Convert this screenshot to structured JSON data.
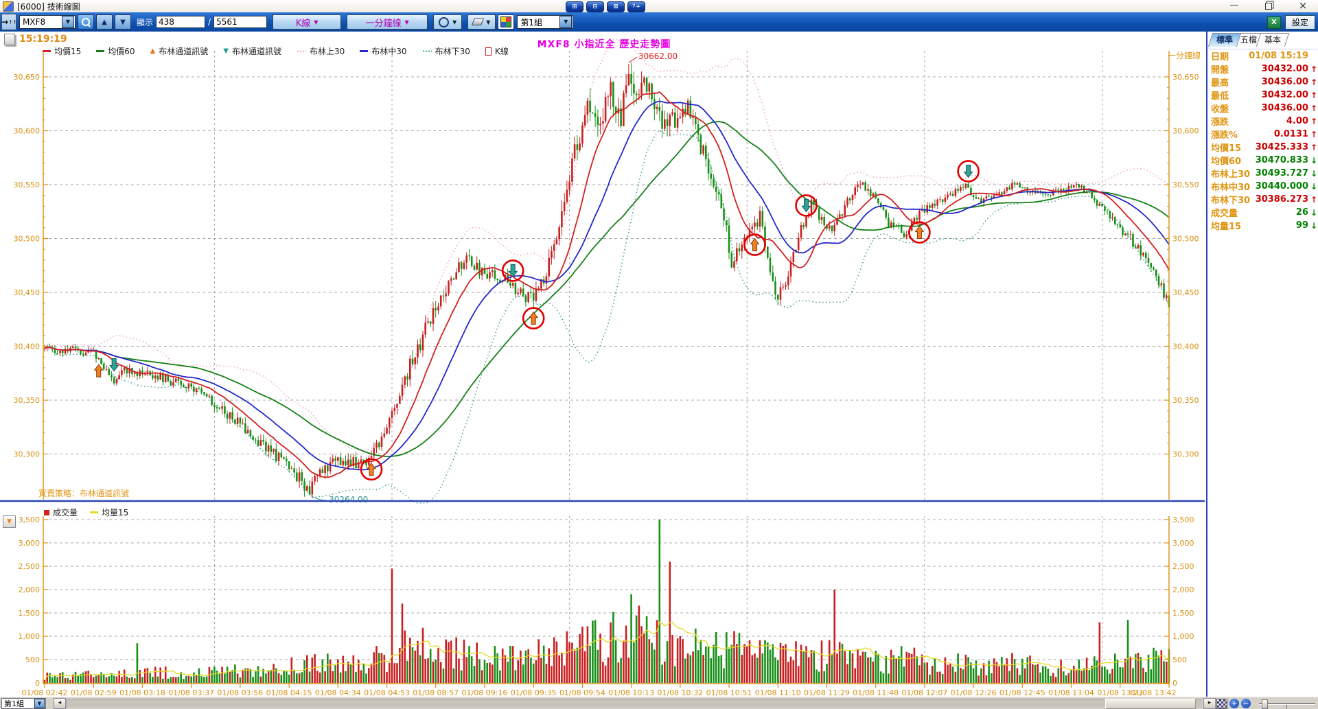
{
  "window": {
    "title": "[6000] 技術線圖",
    "minimize": "—",
    "close": "×",
    "layout_buttons": [
      "⊞",
      "⊟",
      "⊠",
      "?+"
    ]
  },
  "toolbar": {
    "symbol": "MXF8",
    "display_label": "顯示",
    "shown_count": "438",
    "count_separator": "/",
    "total_count": "5561",
    "chart_type": "K線",
    "period": "一分鐘線",
    "group": "第1組",
    "settings_label": "設定",
    "excel_label": "X"
  },
  "chart": {
    "timestamp": "15:19:19",
    "title": "MXF8 小指近全  歷史走勢圖",
    "strategy_note": "買賣策略：布林通道訊號",
    "period_label": "一分鐘線",
    "legend": [
      {
        "label": "均價15",
        "marker": "line",
        "color": "#d42020"
      },
      {
        "label": "均價60",
        "marker": "line",
        "color": "#168016"
      },
      {
        "label": "布林通道訊號",
        "marker": "arrow-up",
        "color": "#e87818"
      },
      {
        "label": "布林通道訊號",
        "marker": "arrow-down",
        "color": "#2a9a92"
      },
      {
        "label": "布林上30",
        "marker": "dots",
        "color": "#f0a0c8"
      },
      {
        "label": "布林中30",
        "marker": "line",
        "color": "#2828c8"
      },
      {
        "label": "布林下30",
        "marker": "dots",
        "color": "#2e988e"
      },
      {
        "label": "K線",
        "marker": "candle",
        "color": "#d42020"
      }
    ],
    "volume_legend": [
      {
        "label": "成交量",
        "marker": "square",
        "color": "#d42020"
      },
      {
        "label": "均量15",
        "marker": "line",
        "color": "#e8d820"
      }
    ]
  },
  "panel": {
    "tabs": [
      {
        "label": "標準",
        "active": true
      },
      {
        "label": "五檔",
        "active": false
      },
      {
        "label": "基本",
        "active": false
      }
    ],
    "rows": [
      {
        "label": "日期",
        "value": "01/08 15:19",
        "color": "orange",
        "arrow": ""
      },
      {
        "label": "開盤",
        "value": "30432.00",
        "color": "red",
        "arrow": "↑"
      },
      {
        "label": "最高",
        "value": "30436.00",
        "color": "red",
        "arrow": "↑"
      },
      {
        "label": "最低",
        "value": "30432.00",
        "color": "red",
        "arrow": "↑"
      },
      {
        "label": "收盤",
        "value": "30436.00",
        "color": "red",
        "arrow": "↑"
      },
      {
        "label": "漲跌",
        "value": "4.00",
        "color": "red",
        "arrow": "↑"
      },
      {
        "label": "漲跌%",
        "value": "0.0131",
        "color": "red",
        "arrow": "↑"
      },
      {
        "label": "均價15",
        "value": "30425.333",
        "color": "red",
        "arrow": "↑"
      },
      {
        "label": "均價60",
        "value": "30470.833",
        "color": "green",
        "arrow": "↓"
      },
      {
        "label": "布林上30",
        "value": "30493.727",
        "color": "green",
        "arrow": "↓"
      },
      {
        "label": "布林中30",
        "value": "30440.000",
        "color": "green",
        "arrow": "↓"
      },
      {
        "label": "布林下30",
        "value": "30386.273",
        "color": "red",
        "arrow": "↑"
      },
      {
        "label": "成交量",
        "value": "26",
        "color": "green",
        "arrow": "↓"
      },
      {
        "label": "均量15",
        "value": "99",
        "color": "green",
        "arrow": "↓"
      }
    ]
  },
  "statusbar": {
    "group": "第1組",
    "left_arrow": "◂",
    "right_arrow": "▸",
    "zoom_in": "+",
    "zoom_out": "−"
  },
  "chart_data": {
    "type": "candlestick",
    "title": "MXF8 小指近全 歷史走勢圖",
    "period": "1-minute",
    "candle_count": 438,
    "close_value": 30436,
    "x_labels": [
      "01/08 02:42",
      "01/08 02:59",
      "01/08 03:18",
      "01/08 03:37",
      "01/08 03:56",
      "01/08 04:15",
      "01/08 04:34",
      "01/08 04:53",
      "01/08 08:57",
      "01/08 09:16",
      "01/08 09:35",
      "01/08 09:54",
      "01/08 10:13",
      "01/08 10:32",
      "01/08 10:51",
      "01/08 11:10",
      "01/08 11:29",
      "01/08 11:48",
      "01/08 12:07",
      "01/08 12:26",
      "01/08 12:45",
      "01/08 13:04",
      "01/08 13:23",
      "01/08 13:42"
    ],
    "price_axis": {
      "ticks": [
        30650,
        30600,
        30550,
        30500,
        30450,
        30400,
        30350,
        30300
      ],
      "color": "#d89010"
    },
    "volume_axis": {
      "ticks": [
        3500,
        3000,
        2500,
        2000,
        1500,
        1000,
        500,
        0
      ],
      "color": "#d89010"
    },
    "high": {
      "index": 227,
      "value": 30662.0,
      "label": "30662.00"
    },
    "low": {
      "index": 103,
      "value": 30264.0,
      "label": "30264.00"
    },
    "price_anchors": [
      [
        0,
        30398
      ],
      [
        12,
        30396
      ],
      [
        20,
        30392
      ],
      [
        26,
        30368
      ],
      [
        32,
        30378
      ],
      [
        45,
        30372
      ],
      [
        58,
        30360
      ],
      [
        70,
        30340
      ],
      [
        82,
        30315
      ],
      [
        92,
        30295
      ],
      [
        100,
        30275
      ],
      [
        103,
        30266
      ],
      [
        108,
        30285
      ],
      [
        115,
        30295
      ],
      [
        122,
        30290
      ],
      [
        127,
        30298
      ],
      [
        133,
        30325
      ],
      [
        140,
        30370
      ],
      [
        148,
        30415
      ],
      [
        156,
        30455
      ],
      [
        163,
        30480
      ],
      [
        170,
        30470
      ],
      [
        177,
        30465
      ],
      [
        184,
        30452
      ],
      [
        190,
        30442
      ],
      [
        196,
        30475
      ],
      [
        202,
        30540
      ],
      [
        207,
        30590
      ],
      [
        212,
        30625
      ],
      [
        216,
        30600
      ],
      [
        220,
        30640
      ],
      [
        224,
        30615
      ],
      [
        227,
        30655
      ],
      [
        231,
        30630
      ],
      [
        235,
        30645
      ],
      [
        240,
        30600
      ],
      [
        245,
        30612
      ],
      [
        250,
        30625
      ],
      [
        256,
        30580
      ],
      [
        262,
        30545
      ],
      [
        267,
        30480
      ],
      [
        272,
        30505
      ],
      [
        278,
        30520
      ],
      [
        284,
        30445
      ],
      [
        288,
        30460
      ],
      [
        293,
        30500
      ],
      [
        298,
        30535
      ],
      [
        304,
        30505
      ],
      [
        310,
        30525
      ],
      [
        316,
        30552
      ],
      [
        322,
        30540
      ],
      [
        328,
        30515
      ],
      [
        334,
        30505
      ],
      [
        340,
        30522
      ],
      [
        346,
        30532
      ],
      [
        352,
        30540
      ],
      [
        358,
        30548
      ],
      [
        364,
        30535
      ],
      [
        370,
        30540
      ],
      [
        378,
        30552
      ],
      [
        384,
        30542
      ],
      [
        390,
        30540
      ],
      [
        396,
        30545
      ],
      [
        402,
        30548
      ],
      [
        408,
        30535
      ],
      [
        414,
        30520
      ],
      [
        420,
        30505
      ],
      [
        426,
        30488
      ],
      [
        430,
        30470
      ],
      [
        434,
        30455
      ],
      [
        437,
        30438
      ]
    ],
    "volatility_anchors": [
      [
        0,
        5
      ],
      [
        60,
        7
      ],
      [
        100,
        9
      ],
      [
        130,
        8
      ],
      [
        145,
        12
      ],
      [
        160,
        10
      ],
      [
        185,
        8
      ],
      [
        200,
        14
      ],
      [
        215,
        18
      ],
      [
        230,
        18
      ],
      [
        245,
        14
      ],
      [
        260,
        12
      ],
      [
        275,
        10
      ],
      [
        290,
        9
      ],
      [
        310,
        7
      ],
      [
        340,
        6
      ],
      [
        370,
        5
      ],
      [
        400,
        5
      ],
      [
        420,
        7
      ],
      [
        437,
        7
      ]
    ],
    "volume_anchors": [
      [
        0,
        160
      ],
      [
        30,
        200
      ],
      [
        40,
        260
      ],
      [
        60,
        220
      ],
      [
        80,
        300
      ],
      [
        100,
        420
      ],
      [
        120,
        480
      ],
      [
        133,
        600
      ],
      [
        140,
        900
      ],
      [
        150,
        800
      ],
      [
        160,
        700
      ],
      [
        170,
        600
      ],
      [
        180,
        550
      ],
      [
        195,
        700
      ],
      [
        205,
        900
      ],
      [
        215,
        1000
      ],
      [
        225,
        1100
      ],
      [
        235,
        1200
      ],
      [
        245,
        1000
      ],
      [
        255,
        800
      ],
      [
        265,
        900
      ],
      [
        275,
        700
      ],
      [
        285,
        600
      ],
      [
        295,
        650
      ],
      [
        305,
        700
      ],
      [
        315,
        550
      ],
      [
        325,
        500
      ],
      [
        335,
        600
      ],
      [
        345,
        500
      ],
      [
        355,
        450
      ],
      [
        365,
        400
      ],
      [
        375,
        450
      ],
      [
        385,
        400
      ],
      [
        395,
        350
      ],
      [
        405,
        400
      ],
      [
        415,
        500
      ],
      [
        425,
        450
      ],
      [
        433,
        600
      ],
      [
        437,
        500
      ]
    ],
    "volume_spikes": [
      [
        36,
        850
      ],
      [
        135,
        2450
      ],
      [
        139,
        1700
      ],
      [
        228,
        1900
      ],
      [
        239,
        3500
      ],
      [
        243,
        2600
      ],
      [
        307,
        2000
      ],
      [
        410,
        1300
      ],
      [
        421,
        1350
      ]
    ],
    "signals": [
      {
        "index": 21,
        "type": "buy",
        "circled": false
      },
      {
        "index": 27,
        "type": "sell",
        "circled": false
      },
      {
        "index": 127,
        "type": "buy",
        "circled": true
      },
      {
        "index": 182,
        "type": "sell",
        "circled": true
      },
      {
        "index": 190,
        "type": "buy",
        "circled": true
      },
      {
        "index": 276,
        "type": "buy",
        "circled": true
      },
      {
        "index": 296,
        "type": "sell",
        "circled": true
      },
      {
        "index": 340,
        "type": "buy",
        "circled": true
      },
      {
        "index": 359,
        "type": "sell",
        "circled": true
      }
    ],
    "series": [
      {
        "name": "均價15",
        "kind": "sma15-close",
        "color": "#d42020"
      },
      {
        "name": "均價60",
        "kind": "sma60-close",
        "color": "#168016"
      },
      {
        "name": "布林上30",
        "kind": "boll30-upper",
        "color": "#f0a8cc"
      },
      {
        "name": "布林中30",
        "kind": "boll30-mid",
        "color": "#2428c8"
      },
      {
        "name": "布林下30",
        "kind": "boll30-lower",
        "color": "#2e988e"
      },
      {
        "name": "均量15",
        "kind": "sma15-volume",
        "color": "#e8d820"
      }
    ],
    "colors": {
      "up_candle": "#c82020",
      "down_candle": "#189018",
      "signal_circle": "#e00000",
      "buy_arrow": "#f08020",
      "sell_arrow": "#2fa39a",
      "grid": "#9a9a9a",
      "axis": "#d89010"
    }
  }
}
